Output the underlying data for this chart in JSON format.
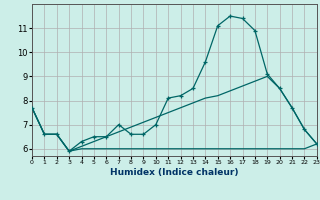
{
  "xlabel": "Humidex (Indice chaleur)",
  "background_color": "#cceee8",
  "grid_color": "#b0b0b0",
  "line_color": "#006666",
  "x_values": [
    0,
    1,
    2,
    3,
    4,
    5,
    6,
    7,
    8,
    9,
    10,
    11,
    12,
    13,
    14,
    15,
    16,
    17,
    18,
    19,
    20,
    21,
    22,
    23
  ],
  "line1_y": [
    7.7,
    6.6,
    6.6,
    5.9,
    6.3,
    6.5,
    6.5,
    7.0,
    6.6,
    6.6,
    7.0,
    8.1,
    8.2,
    8.5,
    9.6,
    11.1,
    11.5,
    11.4,
    10.9,
    9.1,
    8.5,
    7.7,
    6.8,
    6.2
  ],
  "line2_y": [
    7.7,
    6.6,
    6.6,
    5.9,
    6.0,
    6.0,
    6.0,
    6.0,
    6.0,
    6.0,
    6.0,
    6.0,
    6.0,
    6.0,
    6.0,
    6.0,
    6.0,
    6.0,
    6.0,
    6.0,
    6.0,
    6.0,
    6.0,
    6.2
  ],
  "line3_y": [
    7.7,
    6.6,
    6.6,
    5.9,
    6.1,
    6.3,
    6.5,
    6.7,
    6.9,
    7.1,
    7.3,
    7.5,
    7.7,
    7.9,
    8.1,
    8.2,
    8.4,
    8.6,
    8.8,
    9.0,
    8.5,
    7.7,
    6.8,
    6.2
  ],
  "ylim": [
    5.7,
    12.0
  ],
  "xlim": [
    0,
    23
  ],
  "yticks": [
    6,
    7,
    8,
    9,
    10,
    11
  ],
  "xticks": [
    0,
    1,
    2,
    3,
    4,
    5,
    6,
    7,
    8,
    9,
    10,
    11,
    12,
    13,
    14,
    15,
    16,
    17,
    18,
    19,
    20,
    21,
    22,
    23
  ]
}
